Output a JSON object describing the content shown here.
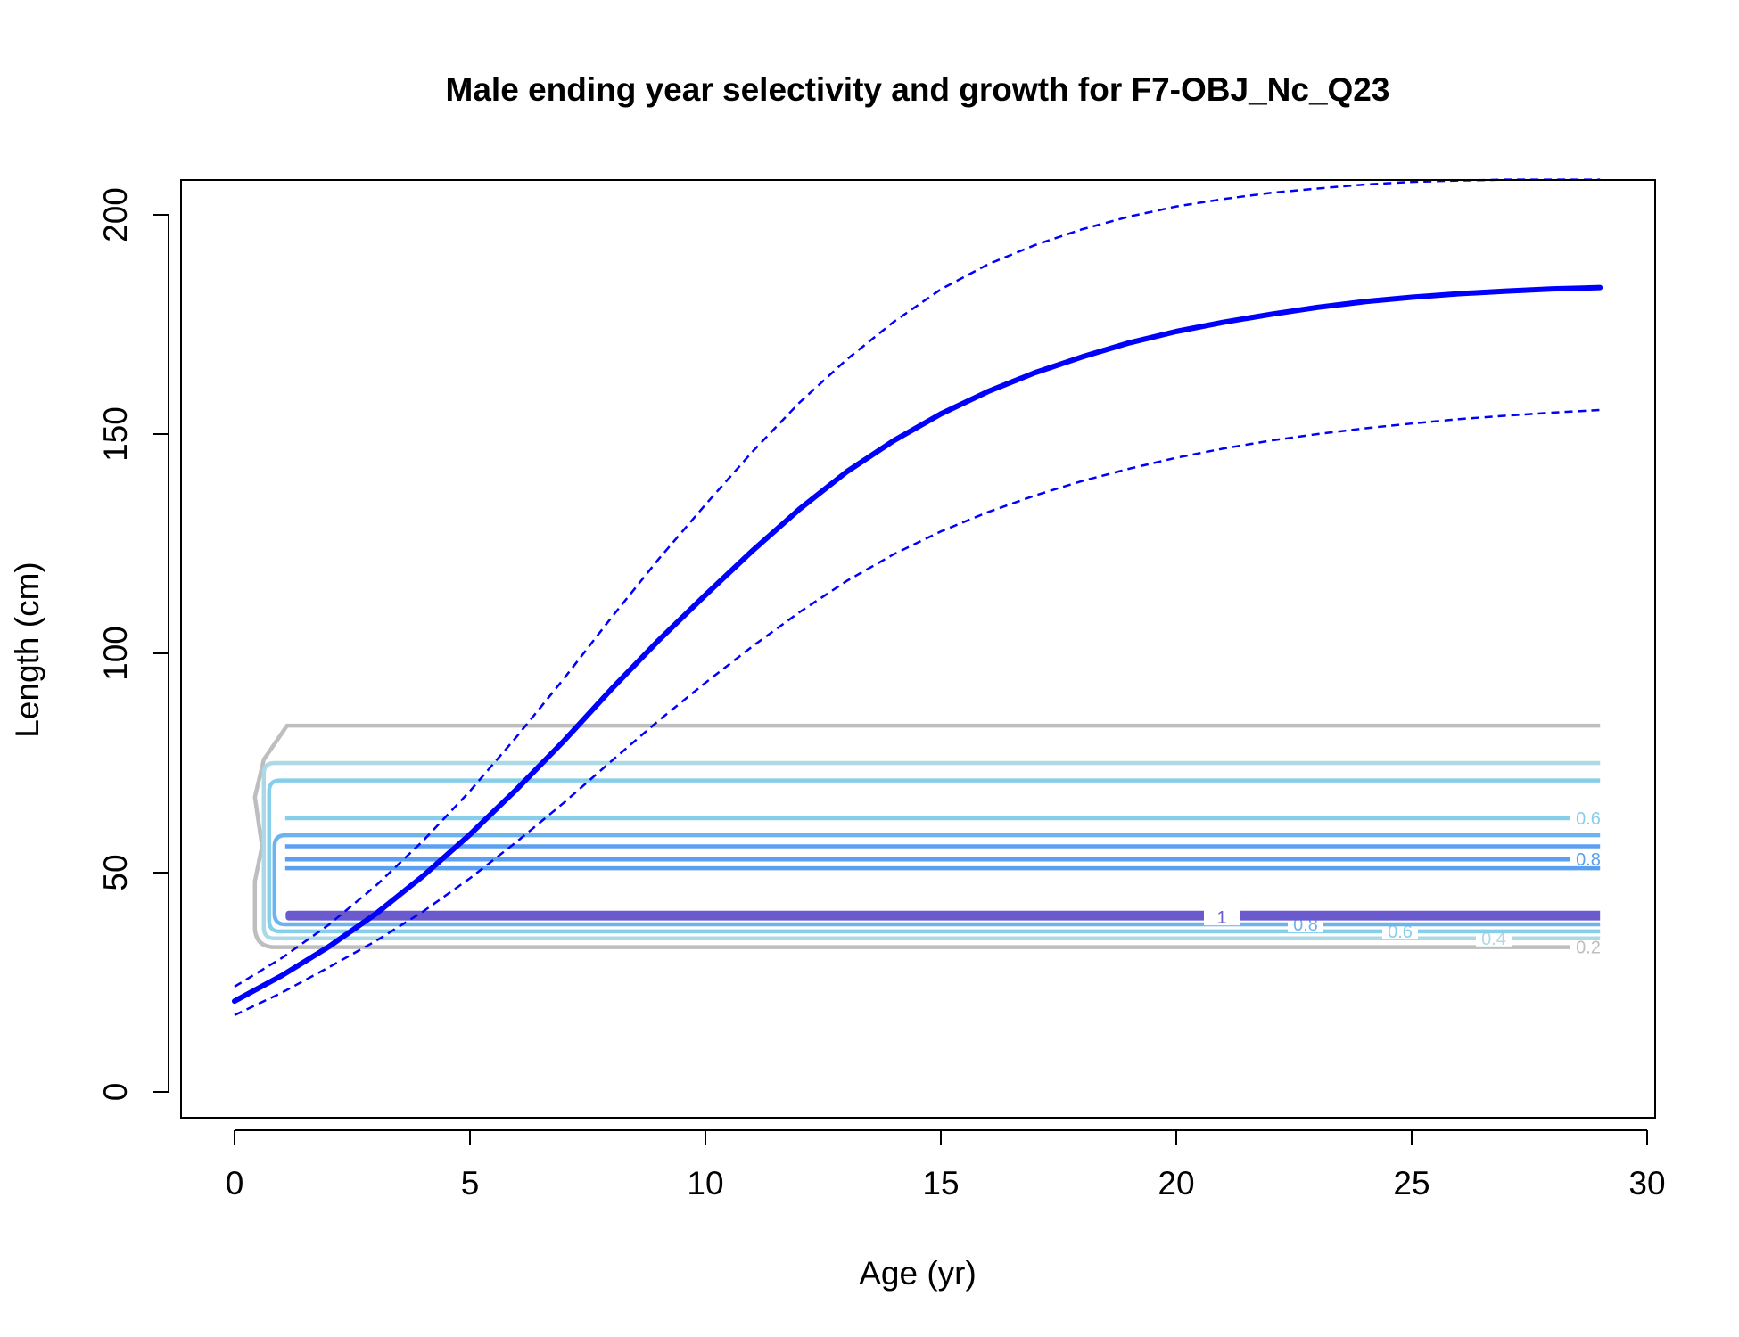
{
  "chart_data": {
    "type": "line",
    "title": "Male ending year selectivity and growth for F7-OBJ_Nc_Q23",
    "xlabel": "Age (yr)",
    "ylabel": "Length (cm)",
    "xlim": [
      -1.2,
      30.1
    ],
    "ylim": [
      -6,
      208
    ],
    "xticks": [
      "0",
      "5",
      "10",
      "15",
      "20",
      "25",
      "30"
    ],
    "yticks": [
      "0",
      "50",
      "100",
      "150",
      "200"
    ],
    "colors": {
      "growth": "#0000ff",
      "c0.2": "#bebebe",
      "c0.4": "#add8e6",
      "c0.6": "#87ceeb",
      "c0.8": "#6cb4ee",
      "c0.8b": "#5aa0f0",
      "c1.0": "#6a5acd"
    },
    "series": [
      {
        "style": "solid",
        "x": [
          0,
          1,
          2,
          3,
          4,
          5,
          6,
          7,
          8,
          9,
          10,
          11,
          12,
          13,
          14,
          15,
          16,
          17,
          18,
          19,
          20,
          21,
          22,
          23,
          24,
          25,
          26,
          27,
          28,
          29
        ],
        "y": [
          20.7,
          26.5,
          33.1,
          40.6,
          49.2,
          58.7,
          69.1,
          80.1,
          91.8,
          102.9,
          113.3,
          123.4,
          132.9,
          141.4,
          148.5,
          154.6,
          159.7,
          164.0,
          167.6,
          170.8,
          173.4,
          175.5,
          177.3,
          178.9,
          180.2,
          181.2,
          182.0,
          182.6,
          183.1,
          183.4
        ]
      },
      {
        "style": "dashed",
        "x": [
          0,
          1,
          2,
          3,
          4,
          5,
          6,
          7,
          8,
          9,
          10,
          11,
          12,
          13,
          14,
          15,
          16,
          17,
          18,
          19,
          20,
          21,
          22,
          23,
          24,
          25,
          26,
          27,
          28,
          29
        ],
        "y": [
          24.0,
          30.5,
          38.1,
          47.0,
          57.2,
          68.6,
          81.1,
          94.3,
          108.1,
          121.4,
          133.9,
          146.0,
          157.2,
          167.0,
          175.6,
          183.0,
          188.7,
          193.1,
          196.7,
          199.6,
          201.9,
          203.6,
          205.0,
          206.0,
          206.9,
          207.5,
          207.8,
          208.0,
          208.0,
          208.0
        ]
      },
      {
        "style": "dashed",
        "x": [
          0,
          1,
          2,
          3,
          4,
          5,
          6,
          7,
          8,
          9,
          10,
          11,
          12,
          13,
          14,
          15,
          16,
          17,
          18,
          19,
          20,
          21,
          22,
          23,
          24,
          25,
          26,
          27,
          28,
          29
        ],
        "y": [
          17.5,
          22.6,
          28.4,
          34.4,
          41.1,
          48.7,
          57.1,
          66.0,
          75.4,
          84.6,
          93.3,
          101.6,
          109.4,
          116.5,
          122.6,
          127.8,
          132.2,
          136.0,
          139.3,
          142.1,
          144.6,
          146.7,
          148.5,
          150.0,
          151.3,
          152.4,
          153.4,
          154.2,
          154.9,
          155.5
        ]
      }
    ],
    "contours": [
      {
        "level": "0.2",
        "color_key": "c0.2",
        "upper": 83.5,
        "lower": 33.0,
        "label": "0.2",
        "label_side": "lower"
      },
      {
        "level": "0.4",
        "color_key": "c0.4",
        "upper": 75.0,
        "lower": 35.0,
        "label": "0.4",
        "label_side": "lower"
      },
      {
        "level": "0.6",
        "color_key": "c0.6",
        "upper": 71.0,
        "lower": 36.6,
        "label": "0.6",
        "label_side": "lower"
      },
      {
        "level": "0.6",
        "color_key": "c0.6",
        "upper": 62.4,
        "lower": null,
        "label": "0.6",
        "label_side": "upper"
      },
      {
        "level": "0.8",
        "color_key": "c0.8",
        "upper": 58.5,
        "lower": 38.2,
        "label": "0.8",
        "label_side": "lower"
      },
      {
        "level": "0.8",
        "color_key": "c0.8b",
        "upper": 56.0,
        "lower": null,
        "label": null,
        "label_side": "none"
      },
      {
        "level": "0.8",
        "color_key": "c0.8b",
        "upper": 53.0,
        "lower": null,
        "label": "0.8",
        "label_side": "upper"
      },
      {
        "level": "0.8",
        "color_key": "c0.8b",
        "upper": 51.0,
        "lower": null,
        "label": null,
        "label_side": "none"
      },
      {
        "level": "1",
        "color_key": "c1.0",
        "upper": 40.6,
        "lower": 39.8,
        "label": "1",
        "label_side": "lower"
      }
    ]
  }
}
